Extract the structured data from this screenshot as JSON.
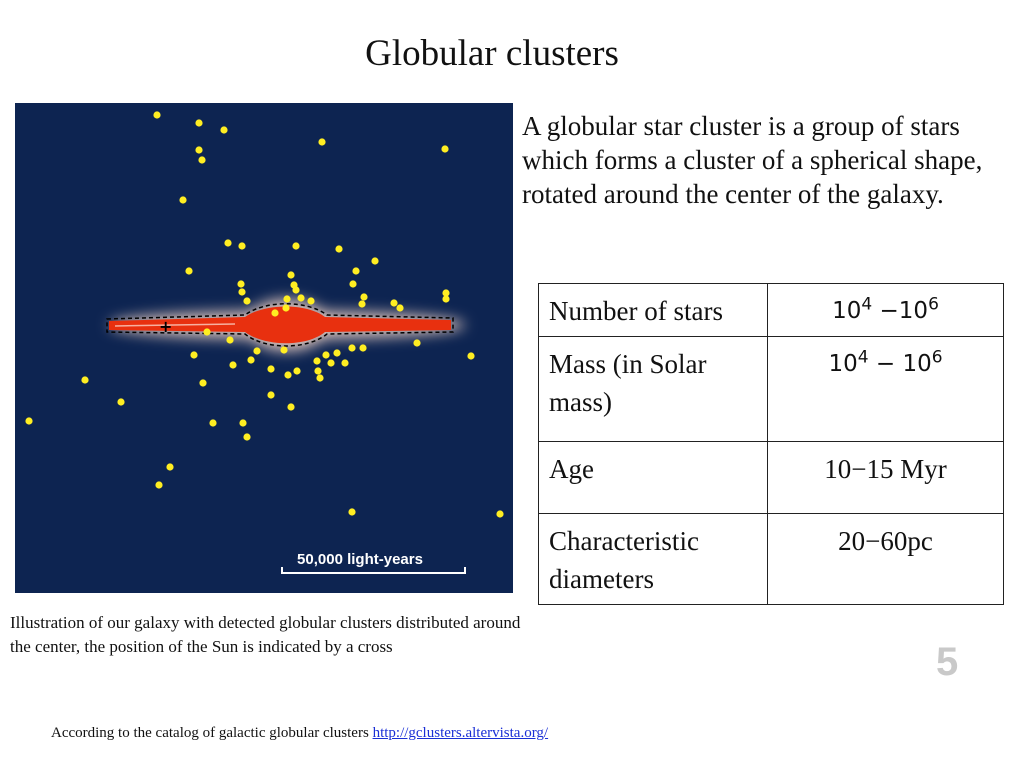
{
  "title": "Globular clusters",
  "figure": {
    "icon": "galaxy-illustration",
    "background_color": "#0d2451",
    "cluster_color": "#ffee22",
    "disk_color": "#e8300f",
    "scale_label": "50,000 light-years",
    "sun_marker": "+"
  },
  "description": "A globular star cluster is a group of stars which forms a cluster of a spherical shape, rotated around the center of the galaxy.",
  "table": {
    "rows": [
      {
        "label": "Number of stars",
        "value_base1": "10",
        "value_exp1": "4",
        "value_sep": " −",
        "value_base2": "10",
        "value_exp2": "6"
      },
      {
        "label": "Mass (in Solar mass)",
        "value_base1": "10",
        "value_exp1": "4",
        "value_sep": " − ",
        "value_base2": "10",
        "value_exp2": "6"
      },
      {
        "label": "Age",
        "value": "10−15 Myr"
      },
      {
        "label": "Characteristic diameters",
        "value": "20−60pc"
      }
    ]
  },
  "caption": "Illustration of our galaxy with detected globular clusters distributed around the center, the position of the Sun is indicated by a cross",
  "page_number": "5",
  "footnote": {
    "text": "According to the catalog of galactic globular clusters ",
    "link_text": "http://gclusters.altervista.org/"
  }
}
